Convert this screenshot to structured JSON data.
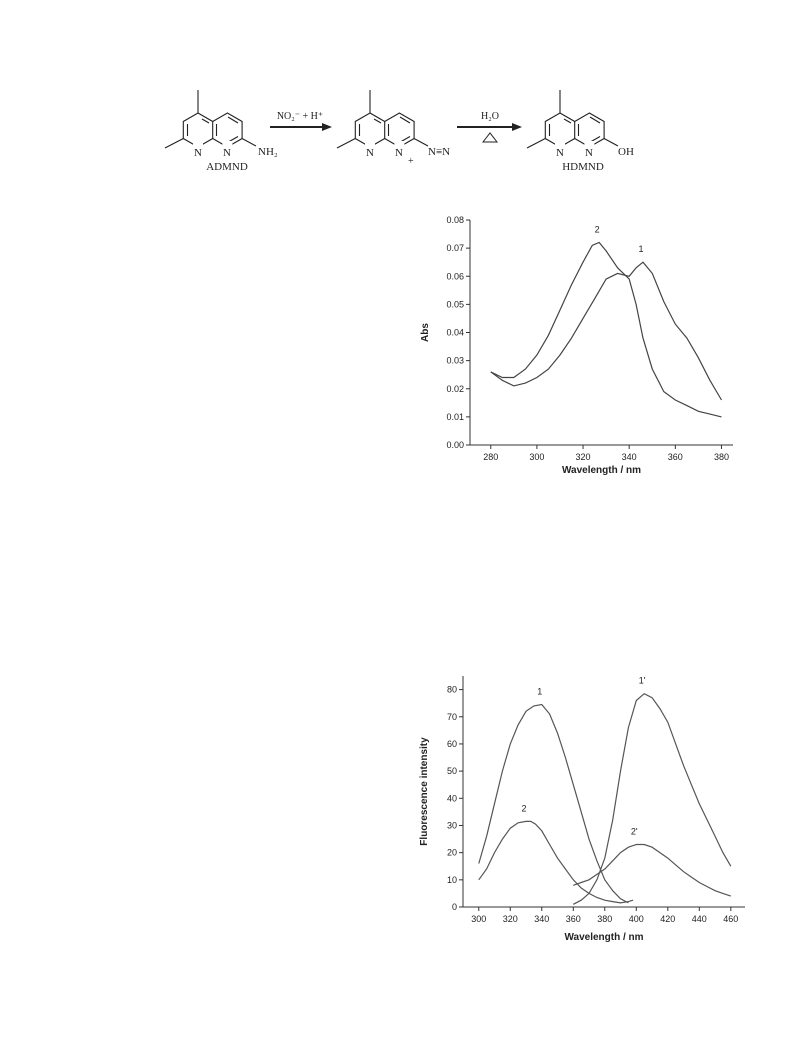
{
  "scheme": {
    "reagent_1": "NO₂⁻ + H⁺",
    "reagent_2": "H₂O",
    "compound_1": "ADMND",
    "compound_3": "HDMND",
    "atom_n": "N",
    "group_nh2": "NH₂",
    "group_diazo": "N≡N",
    "charge": "+",
    "group_oh": "OH"
  },
  "chart_data": [
    {
      "type": "line",
      "ylabel": "Abs",
      "xlabel": "Wavelength / nm",
      "xlim": [
        271,
        385
      ],
      "xticks": [
        280,
        300,
        320,
        340,
        360,
        380
      ],
      "ylim": [
        0,
        0.08
      ],
      "yticks": [
        {
          "value": 0,
          "label": "0.00"
        },
        {
          "value": 0.01,
          "label": "0.01"
        },
        {
          "value": 0.02,
          "label": "0.02"
        },
        {
          "value": 0.03,
          "label": "0.03"
        },
        {
          "value": 0.04,
          "label": "0.04"
        },
        {
          "value": 0.05,
          "label": "0.05"
        },
        {
          "value": 0.06,
          "label": "0.06"
        },
        {
          "value": 0.07,
          "label": "0.07"
        },
        {
          "value": 0.08,
          "label": "0.08"
        }
      ],
      "series": [
        {
          "name": "1",
          "color": "#444",
          "x": [
            280,
            285,
            290,
            295,
            300,
            305,
            310,
            315,
            320,
            325,
            330,
            335,
            340,
            343,
            346,
            350,
            355,
            360,
            365,
            370,
            375,
            380
          ],
          "values": [
            0.026,
            0.023,
            0.021,
            0.022,
            0.024,
            0.027,
            0.032,
            0.038,
            0.045,
            0.052,
            0.059,
            0.061,
            0.06,
            0.063,
            0.065,
            0.061,
            0.051,
            0.043,
            0.038,
            0.031,
            0.023,
            0.016
          ]
        },
        {
          "name": "2",
          "color": "#444",
          "x": [
            280,
            285,
            290,
            295,
            300,
            305,
            310,
            315,
            320,
            324,
            327,
            330,
            335,
            340,
            343,
            346,
            350,
            355,
            360,
            365,
            370,
            375,
            380
          ],
          "values": [
            0.026,
            0.024,
            0.024,
            0.027,
            0.032,
            0.039,
            0.048,
            0.057,
            0.065,
            0.071,
            0.072,
            0.069,
            0.063,
            0.059,
            0.05,
            0.038,
            0.027,
            0.019,
            0.016,
            0.014,
            0.012,
            0.011,
            0.01
          ]
        }
      ]
    },
    {
      "type": "line",
      "ylabel": "Fluorescence intensity",
      "xlabel": "Wavelength / nm",
      "xlim": [
        290,
        469
      ],
      "xticks": [
        300,
        320,
        340,
        360,
        380,
        400,
        420,
        440,
        460
      ],
      "ylim": [
        0,
        85
      ],
      "yticks": [
        0,
        10,
        20,
        30,
        40,
        50,
        60,
        70,
        80
      ],
      "series": [
        {
          "name": "1",
          "color": "#555",
          "x": [
            300,
            305,
            310,
            315,
            320,
            325,
            330,
            335,
            340,
            345,
            350,
            355,
            360,
            365,
            370,
            375,
            380,
            385,
            390,
            395
          ],
          "values": [
            16,
            26,
            38,
            50,
            60,
            67,
            72,
            74,
            74.5,
            71,
            64,
            55,
            45,
            35,
            25,
            17,
            10,
            6,
            3,
            1.5
          ]
        },
        {
          "name": "2",
          "color": "#555",
          "x": [
            300,
            305,
            310,
            315,
            320,
            325,
            330,
            333,
            336,
            340,
            345,
            350,
            355,
            360,
            365,
            370,
            375,
            380,
            385,
            390,
            395,
            398
          ],
          "values": [
            10,
            14,
            20,
            25,
            29,
            31,
            31.5,
            31.5,
            30.5,
            28,
            23,
            18,
            14,
            10,
            7,
            5,
            3.5,
            2.5,
            2,
            1.5,
            2,
            2.5
          ]
        },
        {
          "name": "1'",
          "color": "#555",
          "x": [
            360,
            365,
            370,
            375,
            380,
            385,
            390,
            395,
            400,
            405,
            410,
            415,
            420,
            425,
            430,
            435,
            440,
            445,
            450,
            455,
            460
          ],
          "values": [
            1,
            2.5,
            5,
            10,
            18,
            32,
            50,
            66,
            76,
            78.5,
            77,
            73,
            68,
            60,
            52,
            45,
            38,
            32,
            26,
            20,
            15
          ]
        },
        {
          "name": "2'",
          "color": "#555",
          "x": [
            360,
            365,
            370,
            375,
            380,
            385,
            390,
            395,
            400,
            405,
            410,
            415,
            420,
            425,
            430,
            435,
            440,
            445,
            450,
            455,
            460
          ],
          "values": [
            8,
            9,
            10,
            12,
            14,
            17,
            20,
            22,
            23,
            23,
            22,
            20,
            18,
            15.5,
            13,
            11,
            9,
            7.5,
            6,
            5,
            4
          ]
        }
      ]
    }
  ]
}
